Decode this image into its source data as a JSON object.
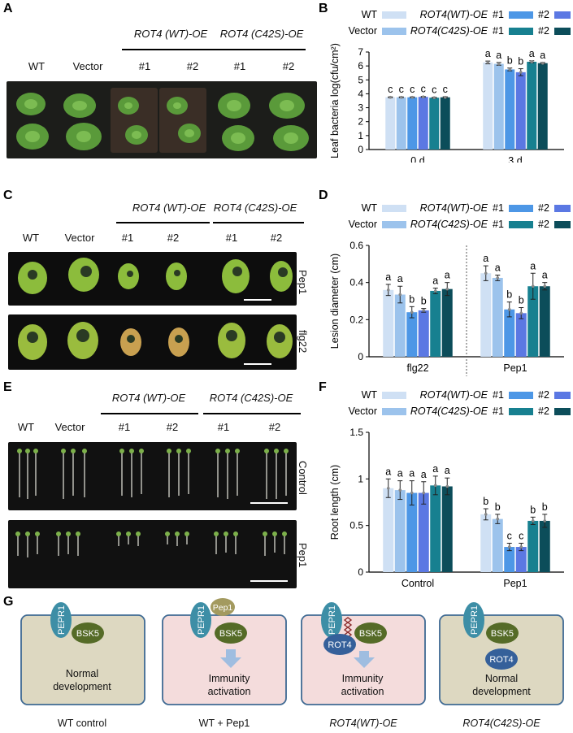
{
  "panels": {
    "A": "A",
    "B": "B",
    "C": "C",
    "D": "D",
    "E": "E",
    "F": "F",
    "G": "G"
  },
  "header": {
    "wt": "WT",
    "vector": "Vector",
    "rot4_wt": "ROT4 (WT)-OE",
    "rot4_c42s": "ROT4 (C42S)-OE",
    "n1": "#1",
    "n2": "#2"
  },
  "photo_labels": {
    "pep1": "Pep1",
    "flg22": "flg22",
    "control": "Control"
  },
  "legend": {
    "wt": "WT",
    "vector": "Vector",
    "rot4_wt": "ROT4(WT)-OE",
    "rot4_c42s": "ROT4(C42S)-OE",
    "n1": "#1",
    "n2": "#2"
  },
  "colors": {
    "WT": "#cfe0f4",
    "Vector": "#9cc3ec",
    "ROT4_WT_1": "#4d97e6",
    "ROT4_WT_2": "#5b78e3",
    "ROT4_C42S_1": "#178090",
    "ROT4_C42S_2": "#0c4d5a",
    "pepr1": "#3d8ea6",
    "bsk5": "#556b27",
    "pep1": "#a39a5f",
    "rot4": "#35609a",
    "cell_gray": "#ddd8c1",
    "cell_pink": "#f4dcdc",
    "cell_border": "#3f6a93",
    "arrow": "#9fbde0"
  },
  "chart_data": [
    {
      "panel": "B",
      "type": "bar",
      "categories": [
        "0 d",
        "3 d"
      ],
      "ylabel": "Leaf bacteria log(cfu/cm²)",
      "ylim": [
        0,
        7
      ],
      "yticks": [
        0,
        1,
        2,
        3,
        4,
        5,
        6,
        7
      ],
      "series": [
        {
          "name": "WT",
          "values": [
            3.75,
            6.25
          ],
          "err": [
            0.03,
            0.1
          ],
          "letters": [
            "c",
            "a"
          ]
        },
        {
          "name": "Vector",
          "values": [
            3.75,
            6.15
          ],
          "err": [
            0.03,
            0.1
          ],
          "letters": [
            "c",
            "a"
          ]
        },
        {
          "name": "ROT4(WT)-OE #1",
          "values": [
            3.75,
            5.75
          ],
          "err": [
            0.03,
            0.1
          ],
          "letters": [
            "c",
            "b"
          ]
        },
        {
          "name": "ROT4(WT)-OE #2",
          "values": [
            3.78,
            5.55
          ],
          "err": [
            0.03,
            0.25
          ],
          "letters": [
            "c",
            "b"
          ]
        },
        {
          "name": "ROT4(C42S)-OE #1",
          "values": [
            3.72,
            6.3
          ],
          "err": [
            0.03,
            0.07
          ],
          "letters": [
            "c",
            "a"
          ]
        },
        {
          "name": "ROT4(C42S)-OE #2",
          "values": [
            3.75,
            6.2
          ],
          "err": [
            0.04,
            0.05
          ],
          "letters": [
            "c",
            "a"
          ]
        }
      ]
    },
    {
      "panel": "D",
      "type": "bar",
      "categories": [
        "flg22",
        "Pep1"
      ],
      "ylabel": "Lesion diameter (cm)",
      "ylim": [
        0,
        0.6
      ],
      "yticks": [
        0,
        0.2,
        0.4,
        0.6
      ],
      "series": [
        {
          "name": "WT",
          "values": [
            0.36,
            0.45
          ],
          "err": [
            0.03,
            0.04
          ],
          "letters": [
            "a",
            "a"
          ]
        },
        {
          "name": "Vector",
          "values": [
            0.335,
            0.425
          ],
          "err": [
            0.045,
            0.015
          ],
          "letters": [
            "a",
            "a"
          ]
        },
        {
          "name": "ROT4(WT)-OE #1",
          "values": [
            0.24,
            0.255
          ],
          "err": [
            0.03,
            0.04
          ],
          "letters": [
            "b",
            "b"
          ]
        },
        {
          "name": "ROT4(WT)-OE #2",
          "values": [
            0.25,
            0.235
          ],
          "err": [
            0.01,
            0.03
          ],
          "letters": [
            "b",
            "b"
          ]
        },
        {
          "name": "ROT4(C42S)-OE #1",
          "values": [
            0.355,
            0.38
          ],
          "err": [
            0.015,
            0.07
          ],
          "letters": [
            "a",
            "a"
          ]
        },
        {
          "name": "ROT4(C42S)-OE #2",
          "values": [
            0.365,
            0.38
          ],
          "err": [
            0.035,
            0.02
          ],
          "letters": [
            "a",
            "a"
          ]
        }
      ]
    },
    {
      "panel": "F",
      "type": "bar",
      "categories": [
        "Control",
        "Pep1"
      ],
      "ylabel": "Root length (cm)",
      "ylim": [
        0,
        1.5
      ],
      "yticks": [
        0,
        0.5,
        1.0,
        1.5
      ],
      "series": [
        {
          "name": "WT",
          "values": [
            0.9,
            0.62
          ],
          "err": [
            0.1,
            0.06
          ],
          "letters": [
            "a",
            "b"
          ]
        },
        {
          "name": "Vector",
          "values": [
            0.88,
            0.57
          ],
          "err": [
            0.1,
            0.05
          ],
          "letters": [
            "a",
            "b"
          ]
        },
        {
          "name": "ROT4(WT)-OE #1",
          "values": [
            0.85,
            0.27
          ],
          "err": [
            0.13,
            0.04
          ],
          "letters": [
            "a",
            "c"
          ]
        },
        {
          "name": "ROT4(WT)-OE #2",
          "values": [
            0.85,
            0.27
          ],
          "err": [
            0.12,
            0.04
          ],
          "letters": [
            "a",
            "c"
          ]
        },
        {
          "name": "ROT4(C42S)-OE #1",
          "values": [
            0.93,
            0.55
          ],
          "err": [
            0.1,
            0.04
          ],
          "letters": [
            "a",
            "b"
          ]
        },
        {
          "name": "ROT4(C42S)-OE #2",
          "values": [
            0.92,
            0.55
          ],
          "err": [
            0.09,
            0.07
          ],
          "letters": [
            "a",
            "b"
          ]
        }
      ]
    }
  ],
  "model": {
    "pepr1": "PEPR1",
    "bsk5": "BSK5",
    "pep1": "Pep1",
    "rot4": "ROT4",
    "normal": "Normal",
    "development": "development",
    "immunity": "Immunity",
    "activation": "activation",
    "captions": [
      "WT control",
      "WT + Pep1",
      "ROT4(WT)-OE",
      "ROT4(C42S)-OE"
    ]
  }
}
